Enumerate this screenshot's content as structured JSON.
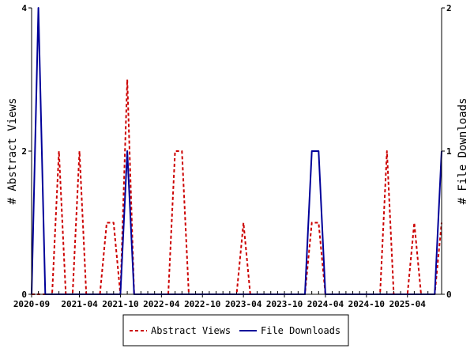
{
  "chart_data": {
    "type": "line",
    "x_unit": "month",
    "x_start": "2020-09",
    "x_end": "2025-09",
    "x_ticks": [
      "2020-09",
      "2021-04",
      "2021-10",
      "2022-04",
      "2022-10",
      "2023-04",
      "2023-10",
      "2024-04",
      "2024-10",
      "2025-04"
    ],
    "y_left": {
      "label": "# Abstract Views",
      "range": [
        0,
        4
      ],
      "ticks": [
        "0",
        "2",
        "4"
      ]
    },
    "y_right": {
      "label": "# File Downloads",
      "range": [
        0,
        2
      ],
      "ticks": [
        "0",
        "1",
        "2"
      ]
    },
    "legend_position": "bottom",
    "grid": false,
    "series": [
      {
        "name": "Abstract Views",
        "axis": "left",
        "color": "#cc0000",
        "style": "dashed",
        "points": [
          [
            "2020-09",
            0
          ],
          [
            "2020-10",
            0
          ],
          [
            "2020-11",
            0
          ],
          [
            "2020-12",
            0
          ],
          [
            "2021-01",
            2
          ],
          [
            "2021-02",
            0
          ],
          [
            "2021-03",
            0
          ],
          [
            "2021-04",
            2
          ],
          [
            "2021-05",
            0
          ],
          [
            "2021-06",
            0
          ],
          [
            "2021-07",
            0
          ],
          [
            "2021-08",
            1
          ],
          [
            "2021-09",
            1
          ],
          [
            "2021-10",
            0
          ],
          [
            "2021-11",
            3
          ],
          [
            "2021-12",
            0
          ],
          [
            "2022-01",
            0
          ],
          [
            "2022-02",
            0
          ],
          [
            "2022-03",
            0
          ],
          [
            "2022-04",
            0
          ],
          [
            "2022-05",
            0
          ],
          [
            "2022-06",
            2
          ],
          [
            "2022-07",
            2
          ],
          [
            "2022-08",
            0
          ],
          [
            "2022-09",
            0
          ],
          [
            "2022-10",
            0
          ],
          [
            "2022-11",
            0
          ],
          [
            "2022-12",
            0
          ],
          [
            "2023-01",
            0
          ],
          [
            "2023-02",
            0
          ],
          [
            "2023-03",
            0
          ],
          [
            "2023-04",
            1
          ],
          [
            "2023-05",
            0
          ],
          [
            "2023-06",
            0
          ],
          [
            "2023-07",
            0
          ],
          [
            "2023-08",
            0
          ],
          [
            "2023-09",
            0
          ],
          [
            "2023-10",
            0
          ],
          [
            "2023-11",
            0
          ],
          [
            "2023-12",
            0
          ],
          [
            "2024-01",
            0
          ],
          [
            "2024-02",
            1
          ],
          [
            "2024-03",
            1
          ],
          [
            "2024-04",
            0
          ],
          [
            "2024-05",
            0
          ],
          [
            "2024-06",
            0
          ],
          [
            "2024-07",
            0
          ],
          [
            "2024-08",
            0
          ],
          [
            "2024-09",
            0
          ],
          [
            "2024-10",
            0
          ],
          [
            "2024-11",
            0
          ],
          [
            "2024-12",
            0
          ],
          [
            "2025-01",
            2
          ],
          [
            "2025-02",
            0
          ],
          [
            "2025-03",
            0
          ],
          [
            "2025-04",
            0
          ],
          [
            "2025-05",
            1
          ],
          [
            "2025-06",
            0
          ],
          [
            "2025-07",
            0
          ],
          [
            "2025-08",
            0
          ],
          [
            "2025-09",
            1
          ]
        ]
      },
      {
        "name": "File Downloads",
        "axis": "right",
        "color": "#000099",
        "style": "solid",
        "points": [
          [
            "2020-09",
            0
          ],
          [
            "2020-10",
            2
          ],
          [
            "2020-11",
            0
          ],
          [
            "2020-12",
            0
          ],
          [
            "2021-01",
            0
          ],
          [
            "2021-02",
            0
          ],
          [
            "2021-03",
            0
          ],
          [
            "2021-04",
            0
          ],
          [
            "2021-05",
            0
          ],
          [
            "2021-06",
            0
          ],
          [
            "2021-07",
            0
          ],
          [
            "2021-08",
            0
          ],
          [
            "2021-09",
            0
          ],
          [
            "2021-10",
            0
          ],
          [
            "2021-11",
            1
          ],
          [
            "2021-12",
            0
          ],
          [
            "2022-01",
            0
          ],
          [
            "2022-02",
            0
          ],
          [
            "2022-03",
            0
          ],
          [
            "2022-04",
            0
          ],
          [
            "2022-05",
            0
          ],
          [
            "2022-06",
            0
          ],
          [
            "2022-07",
            0
          ],
          [
            "2022-08",
            0
          ],
          [
            "2022-09",
            0
          ],
          [
            "2022-10",
            0
          ],
          [
            "2022-11",
            0
          ],
          [
            "2022-12",
            0
          ],
          [
            "2023-01",
            0
          ],
          [
            "2023-02",
            0
          ],
          [
            "2023-03",
            0
          ],
          [
            "2023-04",
            0
          ],
          [
            "2023-05",
            0
          ],
          [
            "2023-06",
            0
          ],
          [
            "2023-07",
            0
          ],
          [
            "2023-08",
            0
          ],
          [
            "2023-09",
            0
          ],
          [
            "2023-10",
            0
          ],
          [
            "2023-11",
            0
          ],
          [
            "2023-12",
            0
          ],
          [
            "2024-01",
            0
          ],
          [
            "2024-02",
            1
          ],
          [
            "2024-03",
            1
          ],
          [
            "2024-04",
            0
          ],
          [
            "2024-05",
            0
          ],
          [
            "2024-06",
            0
          ],
          [
            "2024-07",
            0
          ],
          [
            "2024-08",
            0
          ],
          [
            "2024-09",
            0
          ],
          [
            "2024-10",
            0
          ],
          [
            "2024-11",
            0
          ],
          [
            "2024-12",
            0
          ],
          [
            "2025-01",
            0
          ],
          [
            "2025-02",
            0
          ],
          [
            "2025-03",
            0
          ],
          [
            "2025-04",
            0
          ],
          [
            "2025-05",
            0
          ],
          [
            "2025-06",
            0
          ],
          [
            "2025-07",
            0
          ],
          [
            "2025-08",
            0
          ],
          [
            "2025-09",
            1
          ]
        ]
      }
    ]
  }
}
